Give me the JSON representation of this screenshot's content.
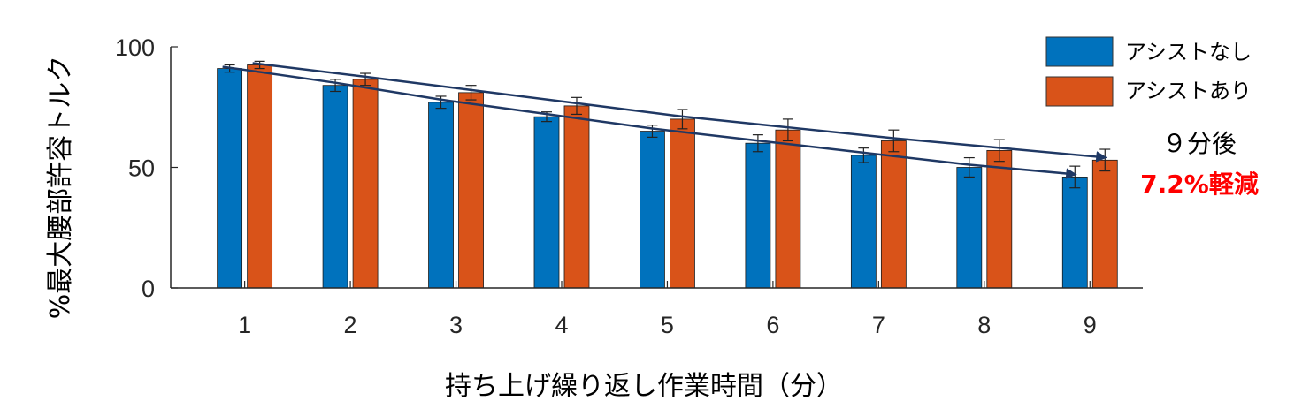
{
  "colors": {
    "assist_off": "#0072BD",
    "assist_on": "#D95319",
    "arrow": "#1f3864",
    "highlight": "#ff0000"
  },
  "chart_data": {
    "type": "bar",
    "xlabel": "持ち上げ繰り返し作業時間（分）",
    "ylabel": "%最大腰部許容トルク",
    "categories": [
      "1",
      "2",
      "3",
      "4",
      "5",
      "6",
      "7",
      "8",
      "9"
    ],
    "ylim": [
      0,
      100
    ],
    "yticks": [
      "0",
      "50",
      "100"
    ],
    "grid": false,
    "legend_position": "top-right",
    "series": [
      {
        "name": "アシストなし",
        "values": [
          91,
          84,
          77,
          71,
          65,
          60,
          55,
          50,
          46
        ],
        "errors": [
          1.5,
          2.5,
          2.5,
          2,
          2.5,
          3.5,
          3,
          4,
          4.5
        ]
      },
      {
        "name": "アシストあり",
        "values": [
          92.5,
          86.5,
          81,
          75.5,
          70,
          65.5,
          61,
          57,
          53
        ],
        "errors": [
          1.5,
          2.5,
          3,
          3.5,
          4,
          4.5,
          4.5,
          4.5,
          4.5
        ]
      }
    ],
    "annotations": {
      "label_line1": "９分後",
      "label_line2": "7.2%軽減"
    }
  }
}
